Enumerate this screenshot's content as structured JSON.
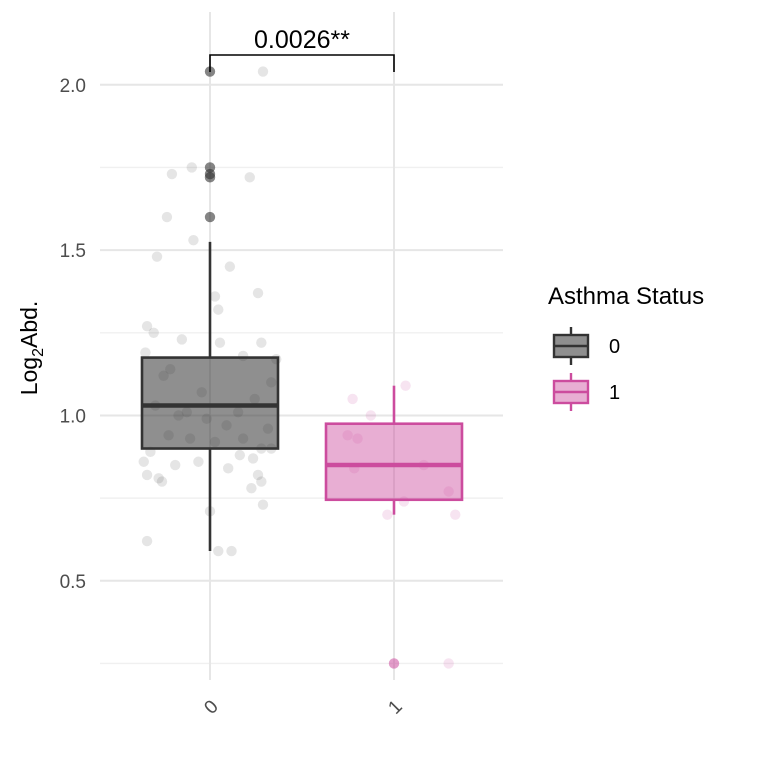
{
  "chart_data": {
    "type": "box",
    "ylabel_main": "Log",
    "ylabel_sub": "2",
    "ylabel_rest": "Abd.",
    "xlabel": "",
    "categories": [
      "0",
      "1"
    ],
    "ylim": [
      0.2,
      2.22
    ],
    "yticks": [
      0.5,
      1.0,
      1.5,
      2.0
    ],
    "ytick_labels": [
      "0.5",
      "1.0",
      "1.5",
      "2.0"
    ],
    "grid": true,
    "colors": {
      "0": "#333333",
      "1": "#CC4C9E"
    },
    "boxes": [
      {
        "category": "0",
        "whisker_low": 0.59,
        "q1": 0.9,
        "median": 1.03,
        "q3": 1.175,
        "whisker_high": 1.525
      },
      {
        "category": "1",
        "whisker_low": 0.7,
        "q1": 0.745,
        "median": 0.85,
        "q3": 0.975,
        "whisker_high": 1.09
      }
    ],
    "outliers": [
      {
        "category": "0",
        "values": [
          2.04,
          1.75,
          1.73,
          1.72,
          1.6
        ]
      },
      {
        "category": "1",
        "values": [
          0.25
        ]
      }
    ],
    "jitter_points": [
      {
        "category": "0",
        "points": [
          [
            -0.38,
            0.62
          ],
          [
            0.05,
            0.59
          ],
          [
            0.13,
            0.59
          ],
          [
            0.32,
            2.04
          ],
          [
            -0.23,
            1.73
          ],
          [
            -0.11,
            1.75
          ],
          [
            0.24,
            1.72
          ],
          [
            -0.26,
            1.6
          ],
          [
            -0.1,
            1.53
          ],
          [
            0.12,
            1.45
          ],
          [
            -0.32,
            1.48
          ],
          [
            0.29,
            1.37
          ],
          [
            0.03,
            1.36
          ],
          [
            0.05,
            1.32
          ],
          [
            -0.38,
            1.27
          ],
          [
            -0.34,
            1.25
          ],
          [
            -0.17,
            1.23
          ],
          [
            0.06,
            1.22
          ],
          [
            0.31,
            1.22
          ],
          [
            -0.39,
            1.19
          ],
          [
            0.2,
            1.18
          ],
          [
            -0.24,
            1.14
          ],
          [
            0.4,
            1.17
          ],
          [
            0.37,
            1.1
          ],
          [
            -0.28,
            1.12
          ],
          [
            -0.05,
            1.07
          ],
          [
            0.27,
            1.05
          ],
          [
            -0.33,
            1.03
          ],
          [
            0.17,
            1.01
          ],
          [
            -0.19,
            1.0
          ],
          [
            -0.02,
            0.99
          ],
          [
            0.1,
            0.97
          ],
          [
            0.35,
            0.96
          ],
          [
            -0.25,
            0.94
          ],
          [
            0.2,
            0.93
          ],
          [
            -0.12,
            0.93
          ],
          [
            0.03,
            0.92
          ],
          [
            0.31,
            0.9
          ],
          [
            -0.36,
            0.89
          ],
          [
            0.18,
            0.88
          ],
          [
            -0.07,
            0.86
          ],
          [
            0.26,
            0.87
          ],
          [
            -0.4,
            0.86
          ],
          [
            -0.21,
            0.85
          ],
          [
            0.11,
            0.84
          ],
          [
            0.29,
            0.82
          ],
          [
            -0.38,
            0.82
          ],
          [
            -0.29,
            0.8
          ],
          [
            -0.31,
            0.81
          ],
          [
            0.25,
            0.78
          ],
          [
            0.31,
            0.8
          ],
          [
            0.37,
            0.9
          ],
          [
            0.0,
            0.71
          ],
          [
            0.32,
            0.73
          ],
          [
            -0.14,
            1.01
          ]
        ]
      },
      {
        "category": "1",
        "points": [
          [
            -0.25,
            1.05
          ],
          [
            0.07,
            1.09
          ],
          [
            -0.14,
            1.0
          ],
          [
            -0.28,
            0.94
          ],
          [
            -0.22,
            0.93
          ],
          [
            0.18,
            0.85
          ],
          [
            -0.24,
            0.84
          ],
          [
            0.33,
            0.77
          ],
          [
            0.06,
            0.74
          ],
          [
            -0.04,
            0.7
          ],
          [
            0.37,
            0.7
          ],
          [
            0.33,
            0.25
          ]
        ]
      }
    ],
    "annotation": {
      "text": "0.0026**",
      "between": [
        "0",
        "1"
      ],
      "y": 2.09
    },
    "legend": {
      "title": "Asthma Status",
      "position": "right",
      "entries": [
        "0",
        "1"
      ]
    }
  }
}
